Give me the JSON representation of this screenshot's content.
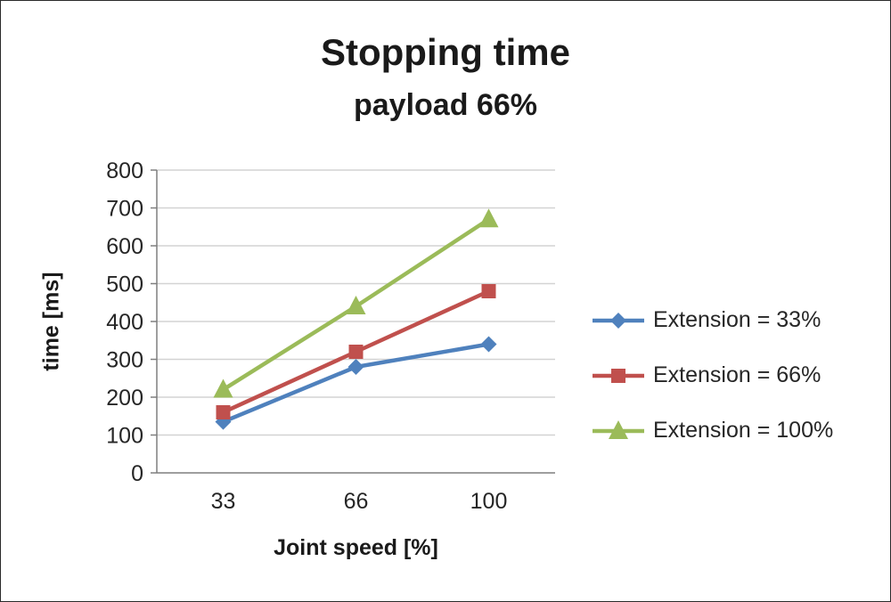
{
  "title": "Stopping time",
  "subtitle": "payload 66%",
  "chart_data": {
    "type": "line",
    "title": "Stopping time",
    "subtitle": "payload 66%",
    "xlabel": "Joint speed [%]",
    "ylabel": "time [ms]",
    "categories": [
      "33",
      "66",
      "100"
    ],
    "series": [
      {
        "name": "Extension = 33%",
        "color": "#4F81BD",
        "marker": "diamond",
        "values": [
          135,
          280,
          340
        ]
      },
      {
        "name": "Extension = 66%",
        "color": "#C0504D",
        "marker": "square",
        "values": [
          160,
          320,
          480
        ]
      },
      {
        "name": "Extension = 100%",
        "color": "#9BBB59",
        "marker": "triangle",
        "values": [
          220,
          440,
          670
        ]
      }
    ],
    "ylim": [
      0,
      800
    ],
    "ytick_step": 100,
    "grid": true,
    "legend_position": "right",
    "gridline_color": "#d3d3d3",
    "axis_color": "#7f7f7f"
  }
}
